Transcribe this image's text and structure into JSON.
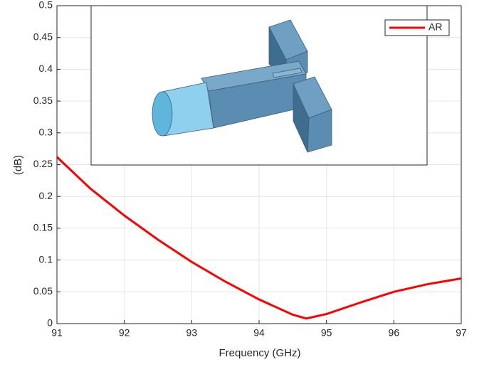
{
  "chart_data": {
    "type": "line",
    "x_label": "Frequency (GHz)",
    "y_label": "(dB)",
    "x": [
      91,
      91.5,
      92,
      92.5,
      93,
      93.5,
      94,
      94.5,
      94.7,
      95,
      95.5,
      96,
      96.5,
      97
    ],
    "series": [
      {
        "name": "AR",
        "color": "#ff0000",
        "values": [
          0.262,
          0.212,
          0.17,
          0.132,
          0.097,
          0.066,
          0.038,
          0.014,
          0.008,
          0.015,
          0.033,
          0.05,
          0.062,
          0.071
        ]
      }
    ],
    "xlim": [
      91,
      97
    ],
    "xticks": [
      91,
      92,
      93,
      94,
      95,
      96,
      97
    ],
    "ylim": [
      0,
      0.5
    ],
    "yticks": [
      0,
      0.05,
      0.1,
      0.15,
      0.2,
      0.25,
      0.3,
      0.35,
      0.4,
      0.45,
      0.5
    ],
    "grid": true,
    "legend": "upper right"
  }
}
